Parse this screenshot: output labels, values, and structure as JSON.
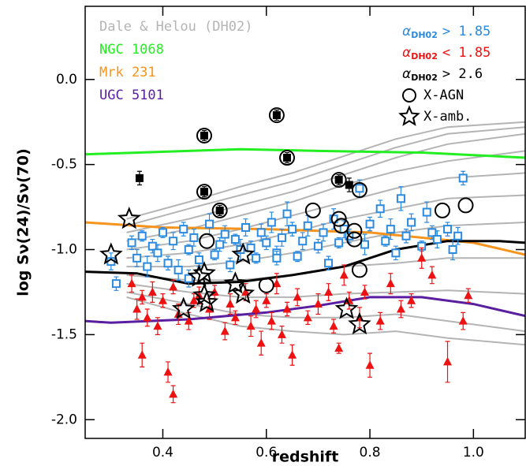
{
  "chart_data": {
    "type": "scatter",
    "xlabel": "redshift",
    "ylabel": "log Sν(24)/Sν(70)",
    "alpha_symbol": "α",
    "alpha_subscript": "DH02",
    "xlim": [
      0.25,
      1.1
    ],
    "ylim": [
      -2.11,
      0.43
    ],
    "xticks": [
      0.4,
      0.6,
      0.8,
      {
        "value": 1.0,
        "label": "1.0"
      }
    ],
    "yticks": [
      {
        "value": 0,
        "label": "0.0"
      },
      -0.5,
      {
        "value": -1.0,
        "label": "-1.0"
      },
      -1.5,
      {
        "value": -2.0,
        "label": "-2.0"
      }
    ],
    "series": [
      {
        "name": "Dale & Helou (DH02)",
        "marker": "line",
        "color": "#b4b4b4",
        "x": [
          0.33,
          0.45,
          0.55,
          0.65,
          0.75,
          0.85,
          0.95,
          1.1
        ],
        "values": [
          -0.82,
          -0.72,
          -0.63,
          -0.55,
          -0.45,
          -0.35,
          -0.28,
          -0.25
        ]
      },
      {
        "marker": "line",
        "color": "#b4b4b4",
        "x": [
          0.33,
          0.45,
          0.55,
          0.65,
          0.75,
          0.85,
          0.95,
          1.1
        ],
        "values": [
          -0.86,
          -0.76,
          -0.68,
          -0.6,
          -0.5,
          -0.4,
          -0.32,
          -0.28
        ]
      },
      {
        "marker": "line",
        "color": "#b4b4b4",
        "x": [
          0.33,
          0.45,
          0.55,
          0.65,
          0.75,
          0.85,
          0.95,
          1.1
        ],
        "values": [
          -0.9,
          -0.82,
          -0.74,
          -0.66,
          -0.56,
          -0.46,
          -0.38,
          -0.32
        ]
      },
      {
        "marker": "line",
        "color": "#b4b4b4",
        "x": [
          0.33,
          0.45,
          0.55,
          0.65,
          0.75,
          0.85,
          0.95,
          1.1
        ],
        "values": [
          -0.95,
          -0.88,
          -0.8,
          -0.72,
          -0.62,
          -0.54,
          -0.48,
          -0.42
        ]
      },
      {
        "marker": "line",
        "color": "#b4b4b4",
        "x": [
          0.33,
          0.45,
          0.55,
          0.65,
          0.75,
          0.85,
          0.95,
          1.1
        ],
        "values": [
          -1.0,
          -0.95,
          -0.88,
          -0.8,
          -0.72,
          -0.64,
          -0.58,
          -0.55
        ]
      },
      {
        "marker": "line",
        "color": "#b4b4b4",
        "x": [
          0.33,
          0.45,
          0.55,
          0.65,
          0.75,
          0.85,
          0.95,
          1.1
        ],
        "values": [
          -1.05,
          -1.02,
          -0.97,
          -0.9,
          -0.82,
          -0.76,
          -0.7,
          -0.68
        ]
      },
      {
        "marker": "line",
        "color": "#b4b4b4",
        "x": [
          0.33,
          0.45,
          0.55,
          0.65,
          0.75,
          0.85,
          0.95,
          1.1
        ],
        "values": [
          -1.1,
          -1.1,
          -1.07,
          -1.02,
          -0.96,
          -0.9,
          -0.86,
          -0.84
        ]
      },
      {
        "marker": "line",
        "color": "#b4b4b4",
        "x": [
          0.33,
          0.45,
          0.55,
          0.65,
          0.75,
          0.85,
          0.95,
          1.1
        ],
        "values": [
          -1.15,
          -1.18,
          -1.18,
          -1.15,
          -1.1,
          -1.08,
          -1.05,
          -1.05
        ]
      },
      {
        "marker": "line",
        "color": "#b4b4b4",
        "x": [
          0.33,
          0.45,
          0.55,
          0.65,
          0.75,
          0.85,
          0.95,
          1.1
        ],
        "values": [
          -1.2,
          -1.25,
          -1.28,
          -1.28,
          -1.26,
          -1.25,
          -1.24,
          -1.26
        ]
      },
      {
        "marker": "line",
        "color": "#b4b4b4",
        "x": [
          0.33,
          0.45,
          0.55,
          0.65,
          0.75,
          0.85,
          0.95,
          1.1
        ],
        "values": [
          -1.25,
          -1.32,
          -1.38,
          -1.4,
          -1.4,
          -1.38,
          -1.42,
          -1.48
        ]
      },
      {
        "marker": "line",
        "color": "#b4b4b4",
        "x": [
          0.33,
          0.45,
          0.55,
          0.65,
          0.75,
          0.85,
          0.95,
          1.1
        ],
        "values": [
          -1.28,
          -1.38,
          -1.45,
          -1.48,
          -1.5,
          -1.48,
          -1.52,
          -1.56
        ]
      },
      {
        "name": "NGC 1068",
        "marker": "line",
        "color": "#22ee22",
        "x": [
          0.25,
          0.45,
          0.55,
          0.7,
          0.9,
          1.1
        ],
        "values": [
          -0.44,
          -0.42,
          -0.41,
          -0.42,
          -0.43,
          -0.46
        ]
      },
      {
        "name": "Mrk 231",
        "marker": "line",
        "color": "#f7941d",
        "x": [
          0.25,
          0.4,
          0.6,
          0.8,
          1.0,
          1.1
        ],
        "values": [
          -0.84,
          -0.87,
          -0.88,
          -0.9,
          -0.96,
          -1.03
        ]
      },
      {
        "name": "UGC 5101",
        "marker": "line",
        "color": "#5a1fa0",
        "x": [
          0.25,
          0.3,
          0.45,
          0.6,
          0.7,
          0.8,
          0.9,
          1.0,
          1.1
        ],
        "values": [
          -1.42,
          -1.43,
          -1.41,
          -1.37,
          -1.33,
          -1.28,
          -1.28,
          -1.32,
          -1.39
        ]
      },
      {
        "marker": "line",
        "color": "#000000",
        "x": [
          0.25,
          0.35,
          0.45,
          0.55,
          0.65,
          0.75,
          0.85,
          0.95,
          1.05,
          1.1
        ],
        "values": [
          -1.13,
          -1.14,
          -1.2,
          -1.19,
          -1.15,
          -1.1,
          -1.0,
          -0.95,
          -0.95,
          -0.96
        ]
      },
      {
        "name": "> 1.85",
        "marker": "open-square",
        "color": "#2a8ae0",
        "x": [
          0.34,
          0.35,
          0.36,
          0.37,
          0.38,
          0.39,
          0.4,
          0.41,
          0.42,
          0.43,
          0.44,
          0.45,
          0.46,
          0.47,
          0.49,
          0.5,
          0.51,
          0.52,
          0.53,
          0.54,
          0.55,
          0.56,
          0.57,
          0.58,
          0.59,
          0.6,
          0.61,
          0.62,
          0.63,
          0.64,
          0.65,
          0.66,
          0.67,
          0.68,
          0.7,
          0.71,
          0.72,
          0.73,
          0.74,
          0.75,
          0.76,
          0.78,
          0.79,
          0.8,
          0.82,
          0.83,
          0.84,
          0.85,
          0.86,
          0.87,
          0.88,
          0.9,
          0.91,
          0.92,
          0.93,
          0.95,
          0.96,
          0.97,
          0.98,
          0.3,
          0.31,
          0.45,
          0.62
        ],
        "values": [
          -0.96,
          -1.05,
          -0.92,
          -1.1,
          -0.98,
          -1.02,
          -0.9,
          -1.08,
          -0.95,
          -1.12,
          -0.88,
          -1.0,
          -0.93,
          -1.06,
          -0.85,
          -1.03,
          -0.97,
          -0.91,
          -1.09,
          -0.94,
          -1.0,
          -0.87,
          -0.99,
          -1.05,
          -0.9,
          -0.96,
          -0.84,
          -1.02,
          -0.93,
          -0.79,
          -0.88,
          -1.04,
          -0.95,
          -0.86,
          -0.98,
          -0.9,
          -1.08,
          -0.82,
          -0.96,
          -0.88,
          -0.92,
          -0.64,
          -0.97,
          -0.85,
          -0.76,
          -0.95,
          -0.88,
          -1.02,
          -0.7,
          -0.92,
          -0.84,
          -0.98,
          -0.78,
          -0.9,
          -0.94,
          -0.88,
          -1.0,
          -0.92,
          -0.58,
          -1.07,
          -1.2,
          -1.17,
          -1.05
        ],
        "yerr": [
          0.04,
          0.05,
          0.03,
          0.06,
          0.04,
          0.05,
          0.03,
          0.04,
          0.05,
          0.06,
          0.04,
          0.03,
          0.05,
          0.04,
          0.06,
          0.03,
          0.04,
          0.05,
          0.04,
          0.03,
          0.06,
          0.05,
          0.04,
          0.03,
          0.05,
          0.04,
          0.06,
          0.04,
          0.05,
          0.07,
          0.04,
          0.03,
          0.05,
          0.06,
          0.04,
          0.05,
          0.04,
          0.06,
          0.03,
          0.05,
          0.04,
          0.05,
          0.06,
          0.04,
          0.05,
          0.03,
          0.06,
          0.04,
          0.07,
          0.04,
          0.05,
          0.03,
          0.06,
          0.04,
          0.05,
          0.04,
          0.06,
          0.05,
          0.04,
          0.05,
          0.04,
          0.05,
          0.04
        ]
      },
      {
        "name": "< 1.85",
        "marker": "triangle",
        "color": "#ee1111",
        "x": [
          0.34,
          0.35,
          0.36,
          0.36,
          0.37,
          0.38,
          0.39,
          0.4,
          0.41,
          0.42,
          0.42,
          0.43,
          0.45,
          0.46,
          0.47,
          0.49,
          0.5,
          0.52,
          0.53,
          0.54,
          0.56,
          0.57,
          0.58,
          0.59,
          0.6,
          0.61,
          0.62,
          0.63,
          0.64,
          0.65,
          0.66,
          0.68,
          0.7,
          0.72,
          0.73,
          0.74,
          0.75,
          0.76,
          0.78,
          0.79,
          0.8,
          0.82,
          0.84,
          0.86,
          0.88,
          0.9,
          0.92,
          0.95,
          0.98,
          0.99
        ],
        "values": [
          -1.2,
          -1.35,
          -1.62,
          -1.28,
          -1.4,
          -1.25,
          -1.45,
          -1.3,
          -1.72,
          -1.85,
          -1.22,
          -1.38,
          -1.42,
          -1.3,
          -1.27,
          -1.35,
          -1.25,
          -1.48,
          -1.32,
          -1.4,
          -1.25,
          -1.45,
          -1.35,
          -1.55,
          -1.3,
          -1.42,
          -1.2,
          -1.5,
          -1.35,
          -1.62,
          -1.28,
          -1.4,
          -1.32,
          -1.25,
          -1.45,
          -1.58,
          -1.15,
          -1.3,
          -1.4,
          -1.25,
          -1.68,
          -1.42,
          -1.2,
          -1.35,
          -1.3,
          -1.05,
          -1.15,
          -1.66,
          -1.42,
          -1.27
        ],
        "yerr": [
          0.05,
          0.06,
          0.07,
          0.04,
          0.05,
          0.06,
          0.05,
          0.04,
          0.06,
          0.05,
          0.04,
          0.06,
          0.05,
          0.04,
          0.05,
          0.06,
          0.04,
          0.05,
          0.06,
          0.04,
          0.05,
          0.06,
          0.05,
          0.07,
          0.04,
          0.05,
          0.06,
          0.05,
          0.04,
          0.06,
          0.05,
          0.04,
          0.06,
          0.05,
          0.04,
          0.03,
          0.06,
          0.05,
          0.06,
          0.04,
          0.07,
          0.05,
          0.06,
          0.05,
          0.04,
          0.06,
          0.05,
          0.12,
          0.05,
          0.04
        ]
      },
      {
        "name": "> 2.6",
        "marker": "filled-square",
        "color": "#000000",
        "x": [
          0.355,
          0.48,
          0.48,
          0.51,
          0.62,
          0.64,
          0.74,
          0.76
        ],
        "values": [
          -0.58,
          -0.33,
          -0.66,
          -0.77,
          -0.21,
          -0.46,
          -0.59,
          -0.62
        ],
        "yerr": [
          0.04,
          0.03,
          0.03,
          0.03,
          0.03,
          0.03,
          0.03,
          0.04
        ]
      },
      {
        "name": "X-AGN",
        "marker": "circle",
        "color": "#000000",
        "x": [
          0.48,
          0.48,
          0.51,
          0.62,
          0.64,
          0.74,
          0.485,
          0.69,
          0.74,
          0.745,
          0.77,
          0.77,
          0.78,
          0.94,
          0.985,
          0.6,
          0.78
        ],
        "values": [
          -0.33,
          -0.66,
          -0.77,
          -0.21,
          -0.46,
          -0.59,
          -0.95,
          -0.77,
          -0.82,
          -0.86,
          -0.89,
          -0.94,
          -0.65,
          -0.77,
          -0.74,
          -1.21,
          -1.12
        ]
      },
      {
        "name": "X-amb.",
        "marker": "star",
        "color": "#000000",
        "x": [
          0.335,
          0.3,
          0.44,
          0.47,
          0.48,
          0.48,
          0.485,
          0.54,
          0.555,
          0.555,
          0.755,
          0.78
        ],
        "values": [
          -0.82,
          -1.03,
          -1.35,
          -1.16,
          -1.14,
          -1.27,
          -1.31,
          -1.2,
          -1.26,
          -1.03,
          -1.35,
          -1.44
        ]
      }
    ]
  }
}
